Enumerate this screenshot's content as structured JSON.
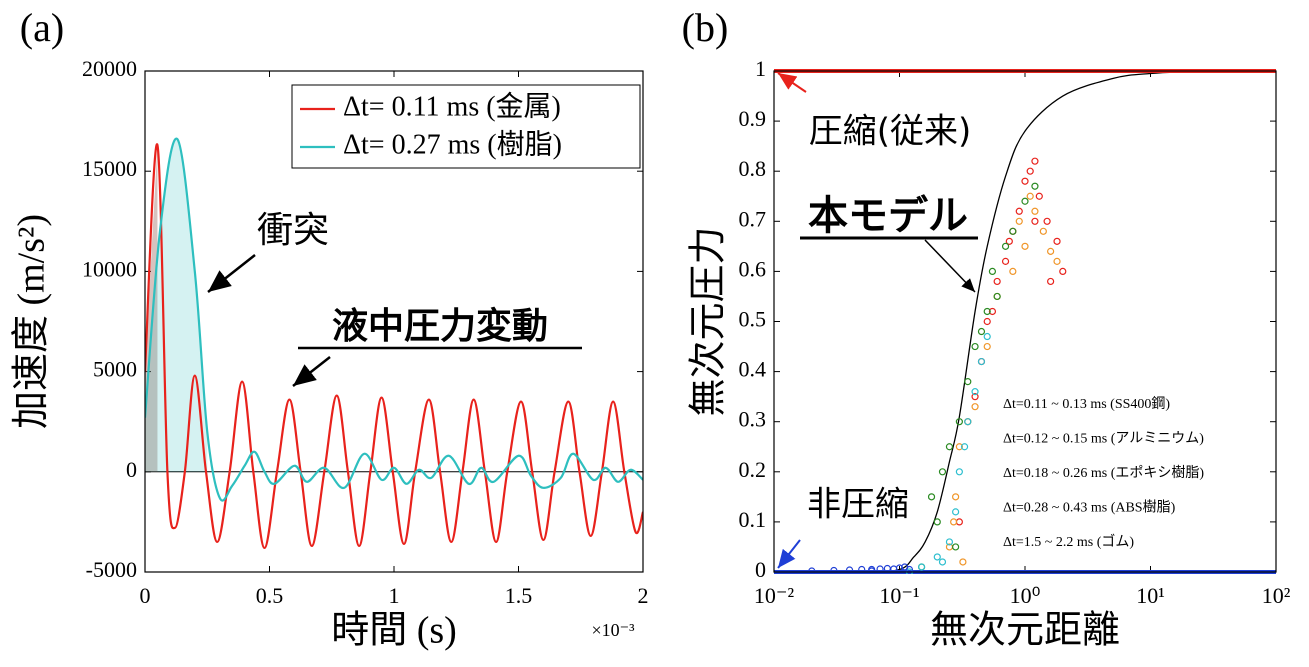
{
  "chart_data": [
    {
      "type": "line",
      "panel_label": "(a)",
      "xlabel": "時間 (s)",
      "ylabel": "加速度 (m/s²)",
      "x_scale_label": "×10⁻³",
      "xlim": [
        0,
        2
      ],
      "xticks": [
        0,
        0.5,
        1,
        1.5,
        2
      ],
      "ylim": [
        -5000,
        20000
      ],
      "yticks": [
        -5000,
        0,
        5000,
        10000,
        15000,
        20000
      ],
      "legend": "upper right",
      "annotations": [
        "衝突",
        "液中圧力変動"
      ],
      "series": [
        {
          "name": "Δt= 0.11 ms (金属)",
          "color": "#e8221c",
          "shade_first_pulse": true,
          "fill": "rgba(140,80,70,0.35)",
          "x": [
            0,
            0.05,
            0.09,
            0.12,
            0.16,
            0.2,
            0.245,
            0.29,
            0.34,
            0.39,
            0.435,
            0.48,
            0.53,
            0.58,
            0.625,
            0.67,
            0.72,
            0.77,
            0.815,
            0.86,
            0.905,
            0.95,
            0.995,
            1.04,
            1.085,
            1.14,
            1.185,
            1.23,
            1.275,
            1.32,
            1.365,
            1.41,
            1.455,
            1.51,
            1.555,
            1.6,
            1.645,
            1.7,
            1.745,
            1.79,
            1.835,
            1.88,
            1.925,
            1.97,
            2.0
          ],
          "values": [
            5000,
            16300,
            0,
            -2800,
            0,
            4800,
            0,
            -3500,
            0,
            4500,
            0,
            -3800,
            0,
            3600,
            0,
            -3700,
            0,
            3800,
            0,
            -3700,
            0,
            3700,
            0,
            -3600,
            0,
            3600,
            0,
            -3500,
            0,
            3600,
            0,
            -3500,
            0,
            3500,
            0,
            -3400,
            0,
            3500,
            0,
            -3200,
            0,
            3500,
            0,
            -3000,
            -2000
          ]
        },
        {
          "name": "Δt= 0.27 ms (樹脂)",
          "color": "#2ebfbf",
          "shade_first_pulse": true,
          "fill": "rgba(46,191,191,0.2)",
          "x": [
            0,
            0.06,
            0.13,
            0.2,
            0.25,
            0.3,
            0.35,
            0.4,
            0.44,
            0.48,
            0.52,
            0.6,
            0.65,
            0.72,
            0.8,
            0.88,
            0.95,
            1.0,
            1.05,
            1.1,
            1.15,
            1.22,
            1.3,
            1.35,
            1.4,
            1.5,
            1.55,
            1.6,
            1.67,
            1.72,
            1.8,
            1.85,
            1.9,
            1.95,
            2.0
          ],
          "values": [
            2700,
            12000,
            16600,
            10000,
            2000,
            -1300,
            -700,
            300,
            1000,
            0,
            -600,
            300,
            -500,
            200,
            -800,
            900,
            -400,
            200,
            -600,
            100,
            -300,
            800,
            -600,
            200,
            -500,
            800,
            -200,
            -800,
            -300,
            900,
            -400,
            200,
            -500,
            100,
            -400
          ]
        }
      ]
    },
    {
      "type": "scatter",
      "panel_label": "(b)",
      "xlabel": "無次元距離",
      "ylabel": "無次元圧力",
      "log_x": true,
      "xlim": [
        0.01,
        100
      ],
      "xticks": [
        {
          "value": 0.01,
          "label": "10⁻²"
        },
        {
          "value": 0.1,
          "label": "10⁻¹"
        },
        {
          "value": 1,
          "label": "10⁰"
        },
        {
          "value": 10,
          "label": "10¹"
        },
        {
          "value": 100,
          "label": "10²"
        }
      ],
      "ylim": [
        0,
        1
      ],
      "yticks": [
        0,
        0.1,
        0.2,
        0.3,
        0.4,
        0.5,
        0.6,
        0.7,
        0.8,
        0.9,
        1
      ],
      "series": [
        {
          "name": "本モデル",
          "type": "line",
          "color": "#000000",
          "x": [
            0.01,
            0.05,
            0.1,
            0.13,
            0.16,
            0.2,
            0.25,
            0.3,
            0.4,
            0.5,
            0.7,
            1,
            2,
            5,
            10,
            30,
            100
          ],
          "values": [
            0,
            0,
            0.005,
            0.03,
            0.06,
            0.12,
            0.22,
            0.31,
            0.52,
            0.65,
            0.79,
            0.88,
            0.95,
            0.985,
            0.995,
            1,
            1
          ]
        },
        {
          "name": "圧縮(従来)",
          "type": "line",
          "color": "#e8221c",
          "x": [
            0.01,
            100
          ],
          "values": [
            1,
            1
          ]
        },
        {
          "name": "非圧縮",
          "type": "line",
          "color": "#1f3fd6",
          "x": [
            0.01,
            100
          ],
          "values": [
            0,
            0
          ]
        },
        {
          "name": "Δt=0.11 ~ 0.13 ms (SS400鋼)",
          "type": "scatter",
          "color": "#e8221c",
          "x": [
            0.3,
            0.35,
            0.4,
            0.45,
            0.5,
            0.6,
            0.7,
            0.8,
            0.9,
            1.0,
            1.1,
            1.2,
            1.3,
            1.5,
            1.8,
            2.0,
            1.6,
            1.2,
            0.75,
            0.55
          ],
          "values": [
            0.1,
            0.3,
            0.35,
            0.42,
            0.5,
            0.58,
            0.62,
            0.68,
            0.72,
            0.78,
            0.8,
            0.82,
            0.75,
            0.7,
            0.66,
            0.6,
            0.58,
            0.7,
            0.66,
            0.52
          ]
        },
        {
          "name": "Δt=0.12 ~ 0.15 ms (アルミニウム)",
          "type": "scatter",
          "color": "#f0962a",
          "x": [
            0.25,
            0.28,
            0.3,
            0.35,
            0.4,
            0.5,
            0.6,
            0.8,
            1.0,
            1.2,
            1.4,
            1.6,
            1.8,
            1.1,
            0.9,
            0.32,
            0.27
          ],
          "values": [
            0.05,
            0.15,
            0.25,
            0.3,
            0.33,
            0.45,
            0.55,
            0.6,
            0.65,
            0.72,
            0.68,
            0.64,
            0.62,
            0.75,
            0.7,
            0.02,
            0.1
          ]
        },
        {
          "name": "Δt=0.18 ~ 0.26 ms (エポキシ樹脂)",
          "type": "scatter",
          "color": "#2a8a22",
          "x": [
            0.15,
            0.2,
            0.22,
            0.25,
            0.3,
            0.35,
            0.4,
            0.5,
            0.55,
            0.7,
            0.8,
            1.0,
            1.2,
            0.6,
            0.45,
            0.28,
            0.18
          ],
          "values": [
            0.01,
            0.1,
            0.2,
            0.25,
            0.3,
            0.38,
            0.45,
            0.52,
            0.6,
            0.65,
            0.68,
            0.74,
            0.77,
            0.55,
            0.48,
            0.05,
            0.15
          ]
        },
        {
          "name": "Δt=0.28 ~ 0.43 ms (ABS樹脂)",
          "type": "scatter",
          "color": "#2ebfcf",
          "x": [
            0.12,
            0.15,
            0.2,
            0.25,
            0.28,
            0.3,
            0.33,
            0.35,
            0.4,
            0.45,
            0.5,
            0.22
          ],
          "values": [
            0,
            0.01,
            0.03,
            0.06,
            0.12,
            0.2,
            0.25,
            0.3,
            0.36,
            0.42,
            0.47,
            0.02
          ]
        },
        {
          "name": "Δt=1.5 ~ 2.2 ms (ゴム)",
          "type": "scatter",
          "color": "#1f3fd6",
          "x": [
            0.02,
            0.03,
            0.04,
            0.05,
            0.06,
            0.07,
            0.08,
            0.09,
            0.1,
            0.11,
            0.12,
            0.06
          ],
          "values": [
            0.002,
            0.003,
            0.004,
            0.005,
            0.005,
            0.006,
            0.007,
            0.006,
            0.008,
            0.01,
            0.005,
            0.002
          ]
        }
      ]
    }
  ]
}
